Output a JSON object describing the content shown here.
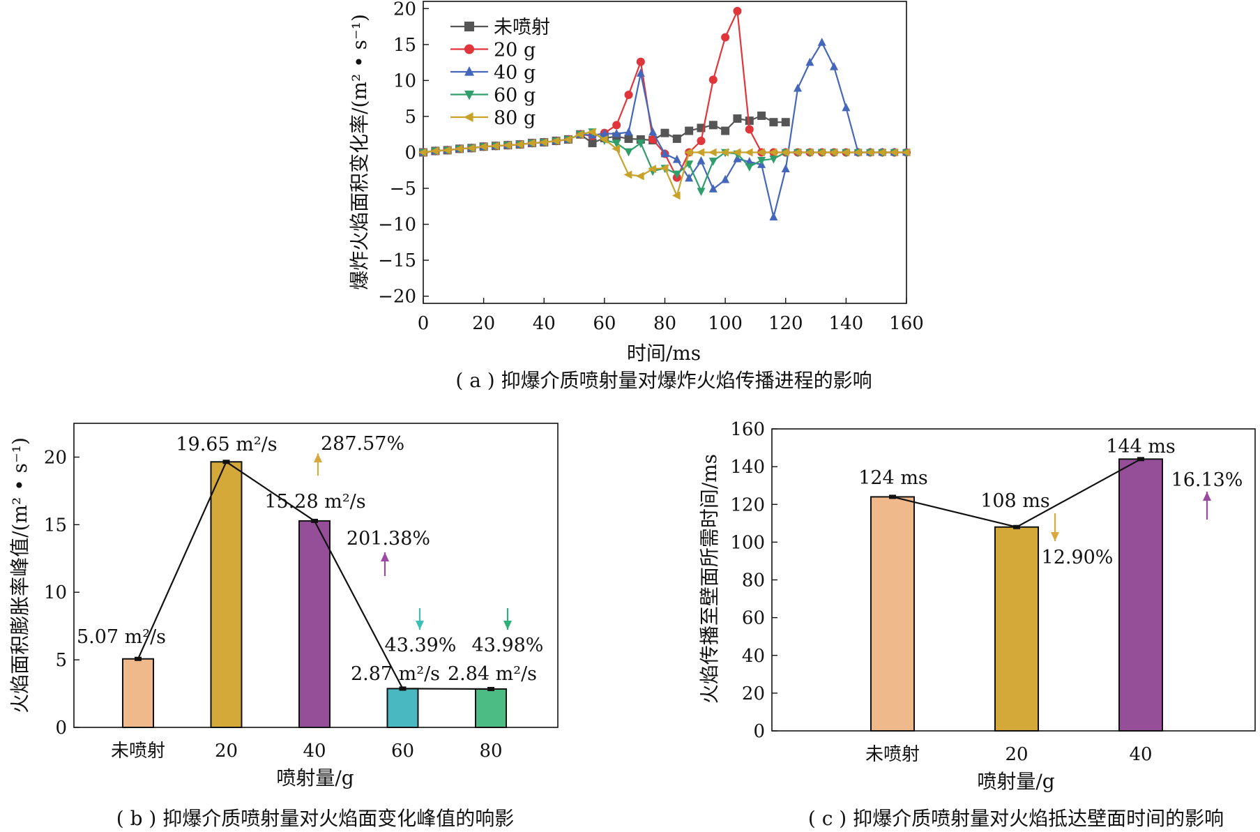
{
  "chart_data": [
    {
      "id": "a",
      "type": "line",
      "caption": "( a ) 抑爆介质喷射量对爆炸火焰传播进程的影响",
      "xlabel": "时间/ms",
      "ylabel": "爆炸火焰面积变化率/(m² • s⁻¹)",
      "xlim": [
        0,
        160
      ],
      "ylim": [
        -21,
        21
      ],
      "xticks": [
        0,
        20,
        40,
        60,
        80,
        100,
        120,
        140,
        160
      ],
      "yticks": [
        -20,
        -15,
        -10,
        -5,
        0,
        5,
        10,
        15,
        20
      ],
      "ytick_labels": [
        "−20",
        "−15",
        "−10",
        "−5",
        "0",
        "5",
        "10",
        "15",
        "20"
      ],
      "grid": false,
      "legend_position": "top-left",
      "series": [
        {
          "name": "未喷射",
          "color": "#555555",
          "marker": "square",
          "x": [
            0,
            4,
            8,
            12,
            16,
            20,
            24,
            28,
            32,
            36,
            40,
            44,
            48,
            52,
            56,
            60,
            64,
            68,
            72,
            76,
            80,
            84,
            88,
            92,
            96,
            100,
            104,
            108,
            112,
            116,
            120
          ],
          "y": [
            0,
            0.2,
            0.3,
            0.5,
            0.6,
            0.8,
            0.9,
            1.0,
            1.1,
            1.3,
            1.4,
            1.6,
            1.8,
            2.5,
            1.3,
            2.0,
            2.2,
            1.9,
            1.8,
            1.7,
            2.7,
            1.9,
            3.0,
            3.4,
            3.8,
            3.0,
            4.7,
            4.4,
            5.1,
            4.2,
            4.2
          ]
        },
        {
          "name": "20 g",
          "color": "#e0353b",
          "marker": "circle",
          "x": [
            0,
            4,
            8,
            12,
            16,
            20,
            24,
            28,
            32,
            36,
            40,
            44,
            48,
            52,
            56,
            60,
            64,
            68,
            72,
            76,
            80,
            84,
            88,
            92,
            96,
            100,
            104,
            108,
            112,
            116,
            120,
            124,
            128,
            132,
            136,
            140,
            144,
            148,
            152,
            156,
            160
          ],
          "y": [
            0,
            0.2,
            0.3,
            0.5,
            0.6,
            0.8,
            0.9,
            1.0,
            1.1,
            1.3,
            1.4,
            1.6,
            1.8,
            2.5,
            2.3,
            2.7,
            3.8,
            8.0,
            12.6,
            1.8,
            -0.2,
            -3.5,
            0,
            1.6,
            10.1,
            16.0,
            19.65,
            3.2,
            0,
            0,
            0,
            0,
            0,
            0,
            0,
            0,
            0,
            0,
            0,
            0,
            0
          ]
        },
        {
          "name": "40 g",
          "color": "#4466bb",
          "marker": "triangle-up",
          "x": [
            0,
            4,
            8,
            12,
            16,
            20,
            24,
            28,
            32,
            36,
            40,
            44,
            48,
            52,
            56,
            60,
            64,
            68,
            72,
            76,
            80,
            84,
            88,
            92,
            96,
            100,
            104,
            108,
            112,
            116,
            120,
            124,
            128,
            132,
            136,
            140,
            144,
            148,
            152,
            156,
            160
          ],
          "y": [
            0,
            0.2,
            0.3,
            0.5,
            0.6,
            0.8,
            0.9,
            1.0,
            1.1,
            1.3,
            1.4,
            1.6,
            1.8,
            2.5,
            2.4,
            2.6,
            2.6,
            2.8,
            11.0,
            2.8,
            -0.2,
            -1.0,
            -3.6,
            -1.2,
            -5.1,
            -3.8,
            -0.9,
            -1.3,
            -1.7,
            -9.0,
            -2.3,
            8.9,
            12.5,
            15.28,
            11.9,
            6.2,
            0,
            0,
            0,
            0,
            0
          ]
        },
        {
          "name": "60 g",
          "color": "#2e9e6a",
          "marker": "triangle-down",
          "x": [
            0,
            4,
            8,
            12,
            16,
            20,
            24,
            28,
            32,
            36,
            40,
            44,
            48,
            52,
            56,
            60,
            64,
            68,
            72,
            76,
            80,
            84,
            88,
            92,
            96,
            100,
            104,
            108,
            112,
            116,
            120,
            124,
            128,
            132,
            136,
            140,
            144,
            148,
            152,
            156,
            160
          ],
          "y": [
            0,
            0.2,
            0.3,
            0.5,
            0.6,
            0.8,
            0.9,
            1.0,
            1.1,
            1.3,
            1.4,
            1.6,
            1.8,
            2.5,
            2.87,
            1.7,
            1.3,
            0.1,
            1.3,
            -2.6,
            -2.2,
            -3.0,
            -1.6,
            -5.4,
            -1.2,
            0,
            -0.2,
            -2.0,
            -1.1,
            -0.9,
            0,
            0,
            0,
            0,
            0,
            0,
            0,
            0,
            0,
            0,
            0
          ]
        },
        {
          "name": "80 g",
          "color": "#c9a22a",
          "marker": "triangle-left",
          "x": [
            0,
            4,
            8,
            12,
            16,
            20,
            24,
            28,
            32,
            36,
            40,
            44,
            48,
            52,
            56,
            60,
            64,
            68,
            72,
            76,
            80,
            84,
            88,
            92,
            96,
            100,
            104,
            108,
            112,
            116,
            120,
            124,
            128,
            132,
            136,
            140,
            144,
            148,
            152,
            156,
            160
          ],
          "y": [
            0,
            0.2,
            0.3,
            0.5,
            0.6,
            0.8,
            0.9,
            1.0,
            1.1,
            1.3,
            1.4,
            1.6,
            1.8,
            2.5,
            2.84,
            1.8,
            0.5,
            -3.1,
            -3.3,
            -2.3,
            -2.2,
            -6.0,
            0,
            0,
            0,
            0,
            0,
            0,
            0,
            0,
            0,
            0,
            0,
            0,
            0,
            0,
            0,
            0,
            0,
            0,
            0
          ]
        }
      ]
    },
    {
      "id": "b",
      "type": "bar",
      "caption": "( b ) 抑爆介质喷射量对火焰面变化峰值的响影",
      "xlabel": "喷射量/g",
      "ylabel": "火焰面积膨胀率峰值/(m² • s⁻¹)",
      "ylim": [
        0,
        22.5
      ],
      "yticks": [
        0,
        5,
        10,
        15,
        20
      ],
      "categories": [
        "未喷射",
        "20",
        "40",
        "60",
        "80"
      ],
      "values": [
        5.07,
        19.65,
        15.28,
        2.87,
        2.84
      ],
      "colors": [
        "#f0b98c",
        "#d4a93a",
        "#954f98",
        "#49b8c0",
        "#4dbb84"
      ],
      "value_labels": [
        "5.07 m²/s",
        "19.65 m²/s",
        "15.28 m²/s",
        "2.87 m²/s",
        "2.84 m²/s"
      ],
      "connect_line": true,
      "grid": false,
      "annotations": [
        {
          "category": "20",
          "text": "287.57%",
          "direction": "up",
          "color": "#d9a93d"
        },
        {
          "category": "40",
          "text": "201.38%",
          "direction": "up",
          "color": "#9a4aa0"
        },
        {
          "category": "60",
          "text": "43.39%",
          "direction": "down",
          "color": "#3cbfb6"
        },
        {
          "category": "80",
          "text": "43.98%",
          "direction": "down",
          "color": "#2eb07a"
        }
      ]
    },
    {
      "id": "c",
      "type": "bar",
      "caption": "( c ) 抑爆介质喷射量对火焰抵达壁面时间的影响",
      "xlabel": "喷射量/g",
      "ylabel": "火焰传播至壁面所需时间/ms",
      "ylim": [
        0,
        160
      ],
      "yticks": [
        0,
        20,
        40,
        60,
        80,
        100,
        120,
        140,
        160
      ],
      "categories": [
        "未喷射",
        "20",
        "40"
      ],
      "values": [
        124,
        108,
        144
      ],
      "colors": [
        "#f0b98c",
        "#d4a93a",
        "#954f98"
      ],
      "value_labels": [
        "124 ms",
        "108 ms",
        "144 ms"
      ],
      "connect_line": true,
      "grid": false,
      "annotations": [
        {
          "category": "20",
          "text": "12.90%",
          "direction": "down",
          "color": "#d9a93d"
        },
        {
          "category": "40",
          "text": "16.13%",
          "direction": "up",
          "color": "#9a4aa0"
        }
      ]
    }
  ]
}
